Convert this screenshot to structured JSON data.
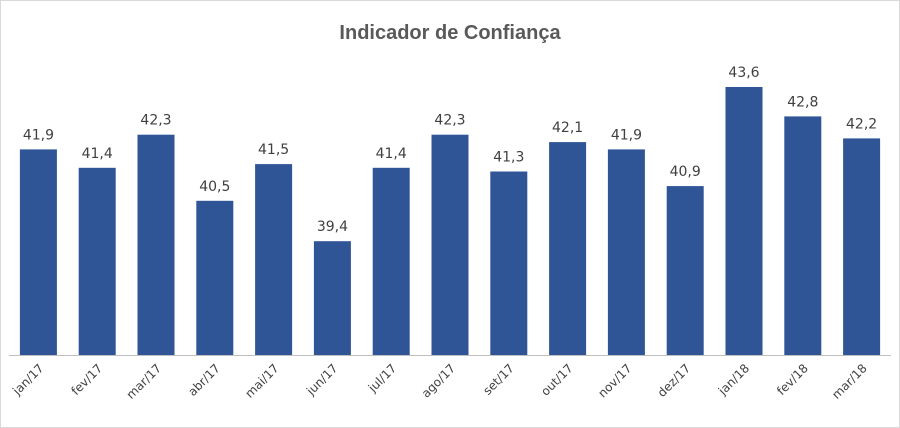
{
  "chart_data": {
    "type": "bar",
    "title": "Indicador de Confiança",
    "categories": [
      "jan/17",
      "fev/17",
      "mar/17",
      "abr/17",
      "mai/17",
      "jun/17",
      "jul/17",
      "ago/17",
      "set/17",
      "out/17",
      "nov/17",
      "dez/17",
      "jan/18",
      "fev/18",
      "mar/18"
    ],
    "values": [
      41.9,
      41.4,
      42.3,
      40.5,
      41.5,
      39.4,
      41.4,
      42.3,
      41.3,
      42.1,
      41.9,
      40.9,
      43.6,
      42.8,
      42.2
    ],
    "data_labels": [
      "41,9",
      "41,4",
      "42,3",
      "40,5",
      "41,5",
      "39,4",
      "41,4",
      "42,3",
      "41,3",
      "42,1",
      "41,9",
      "40,9",
      "43,6",
      "42,8",
      "42,2"
    ],
    "xlabel": "",
    "ylabel": "",
    "ylim": [
      36.3,
      44.2
    ],
    "grid": false,
    "legend": "none",
    "colors": {
      "bar": "#2f5597",
      "axis": "#bfbfbf"
    }
  }
}
